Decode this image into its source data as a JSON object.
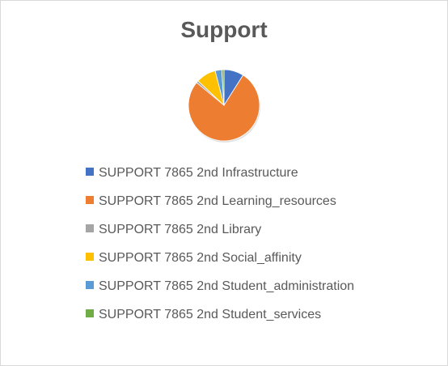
{
  "chart_data": {
    "type": "pie",
    "title": "Support",
    "legend_position": "bottom",
    "categories": [
      "SUPPORT 7865 2nd Infrastructure",
      "SUPPORT 7865 2nd Learning_resources",
      "SUPPORT 7865 2nd Library",
      "SUPPORT 7865 2nd Social_affinity",
      "SUPPORT 7865 2nd Student_administration",
      "SUPPORT 7865 2nd Student_services"
    ],
    "values": [
      9,
      77,
      1,
      9,
      3,
      1
    ],
    "colors": [
      "#4472c4",
      "#ed7d31",
      "#a5a5a5",
      "#ffc000",
      "#5b9bd5",
      "#70ad47"
    ]
  }
}
